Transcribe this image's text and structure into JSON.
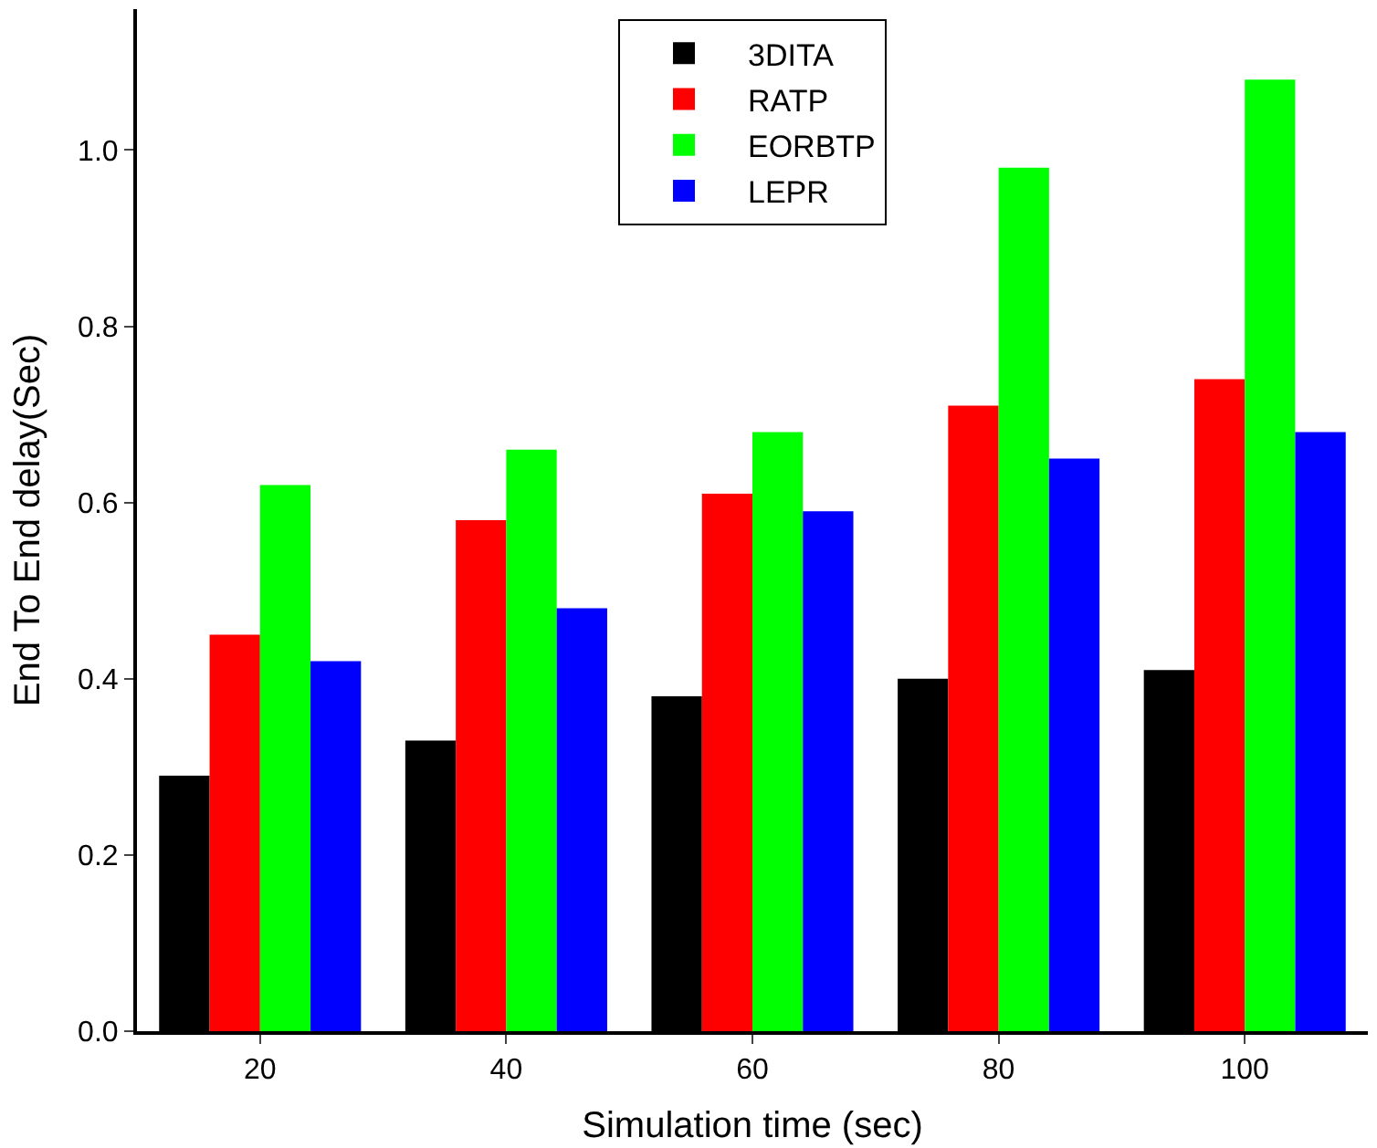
{
  "chart_data": {
    "type": "bar",
    "xlabel": "Simulation time (sec)",
    "ylabel": "End To End delay(Sec)",
    "categories": [
      "20",
      "40",
      "60",
      "80",
      "100"
    ],
    "series": [
      {
        "name": "3DITA",
        "color": "#000000",
        "values": [
          0.29,
          0.33,
          0.38,
          0.4,
          0.41
        ]
      },
      {
        "name": "RATP",
        "color": "#ff0000",
        "values": [
          0.45,
          0.58,
          0.61,
          0.71,
          0.74
        ]
      },
      {
        "name": "EORBTP",
        "color": "#00ff00",
        "values": [
          0.62,
          0.66,
          0.68,
          0.98,
          1.08
        ]
      },
      {
        "name": "LEPR",
        "color": "#0000ff",
        "values": [
          0.42,
          0.48,
          0.59,
          0.65,
          0.68
        ]
      }
    ],
    "ylim": [
      0,
      1.16
    ],
    "yticks": [
      {
        "value": 0,
        "label": "0.0"
      },
      0.2,
      0.4,
      0.6,
      0.8,
      {
        "value": 1,
        "label": "1.0"
      }
    ],
    "legend": "top"
  }
}
